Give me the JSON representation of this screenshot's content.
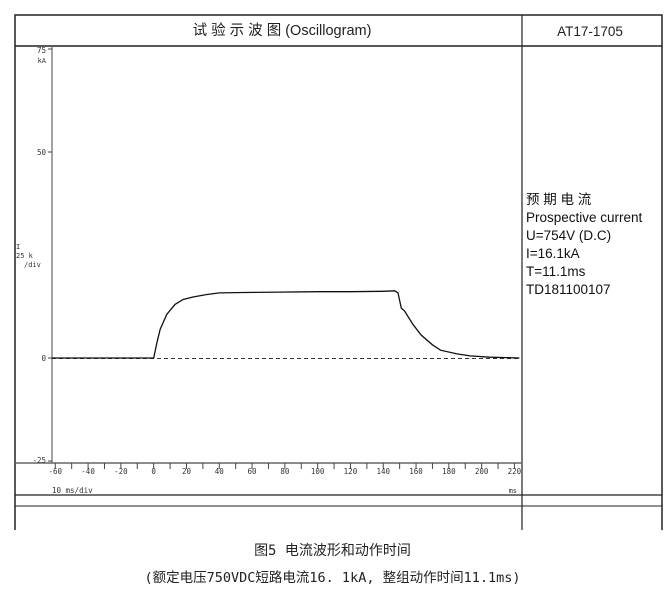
{
  "header": {
    "title": "试 验 示 波 图 (Oscillogram)",
    "code": "AT17-1705"
  },
  "info": {
    "line1": "预 期 电 流",
    "line2": "Prospective current",
    "line3": "U=754V (D.C)",
    "line4": "I=16.1kA",
    "line5": "T=11.1ms",
    "line6": "TD181100107"
  },
  "caption": {
    "line1": "图5 电流波形和动作时间",
    "line2": "(额定电压750VDC短路电流16. 1kA, 整组动作时间11.1ms)"
  },
  "chart_data": {
    "type": "line",
    "title": "",
    "xlabel": "10 ms/div",
    "x_unit": "ms",
    "ylabel": "I 25 k /div",
    "y_unit": "kA",
    "xlim": [
      -62,
      224
    ],
    "ylim": [
      -25,
      75
    ],
    "x_ticks": [
      -60,
      -40,
      -20,
      0,
      20,
      40,
      60,
      80,
      100,
      120,
      140,
      160,
      180,
      200,
      220
    ],
    "y_ticks": [
      -25,
      0,
      50,
      75
    ],
    "zero_line": "dashed",
    "line_color": "#111111",
    "series": [
      {
        "x": [
          -62,
          -30,
          -1,
          0,
          2,
          4,
          8,
          13,
          18,
          24,
          32,
          40,
          55,
          77,
          100,
          120,
          140,
          147,
          149,
          151,
          153,
          158,
          163,
          170,
          175,
          185,
          193,
          205,
          215,
          223
        ],
        "y": [
          0,
          0,
          0,
          0,
          3.8,
          7,
          10.6,
          13,
          14.2,
          14.8,
          15.4,
          15.8,
          15.9,
          16,
          16.1,
          16.1,
          16.2,
          16.3,
          15.8,
          12.1,
          11.4,
          8.2,
          5.6,
          3.2,
          1.9,
          1.0,
          0.5,
          0.2,
          0.1,
          0
        ]
      }
    ]
  }
}
